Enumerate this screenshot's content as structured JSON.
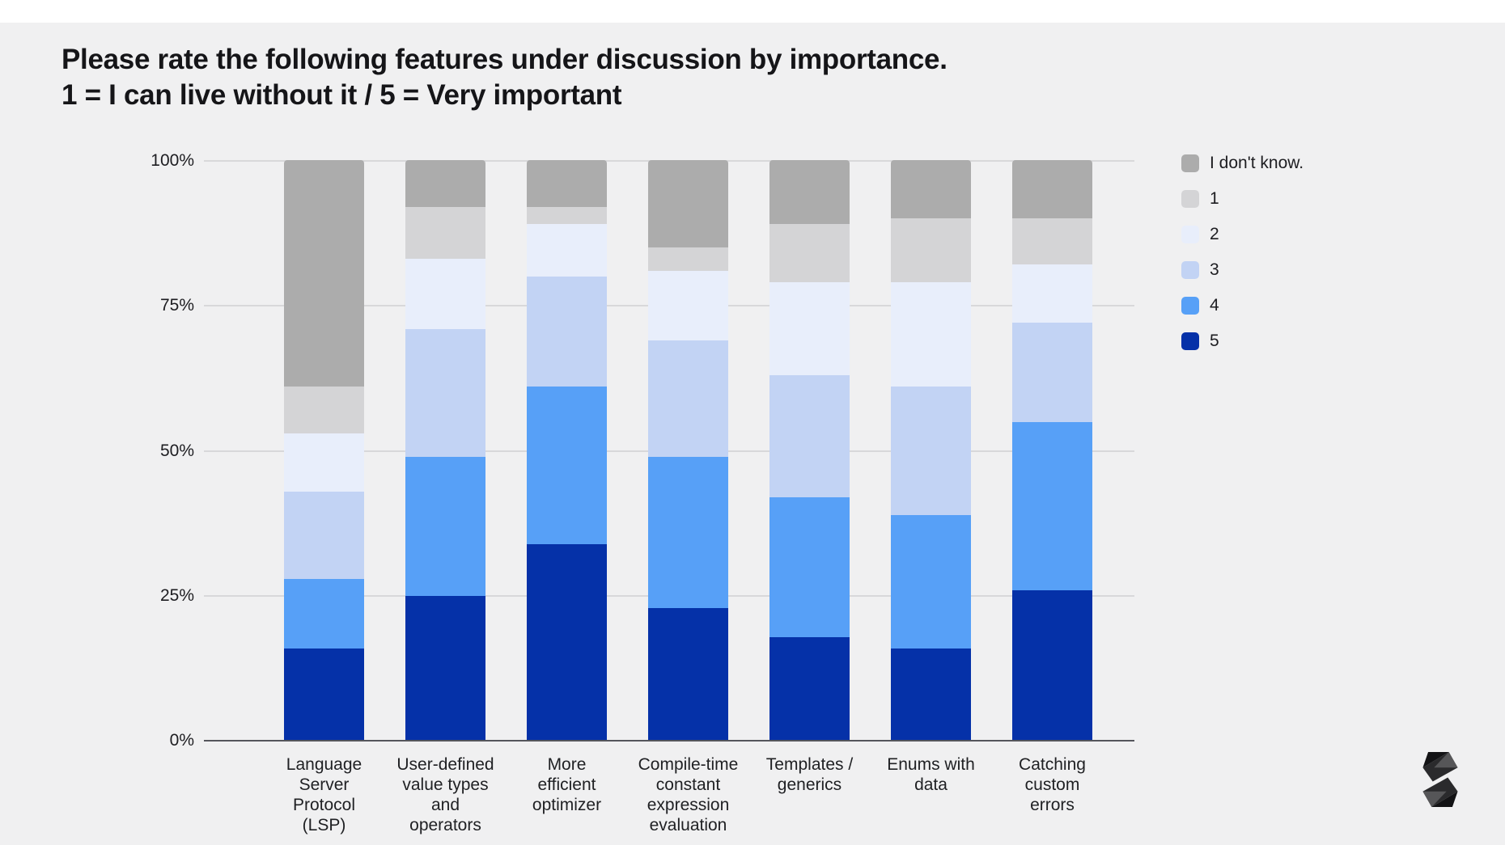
{
  "page": {
    "background_color": "#f0f0f1",
    "top_strip_color": "#ffffff"
  },
  "title": {
    "line1": "Please rate the following features under discussion by importance.",
    "line2": "1 = I can live without it / 5 = Very important"
  },
  "chart_data": {
    "type": "bar",
    "subtype": "stacked-percent-column",
    "title": "Please rate the following features under discussion by importance. 1 = I can live without it / 5 = Very important",
    "xlabel": "",
    "ylabel": "",
    "ylim": [
      0,
      100
    ],
    "grid": true,
    "legend_position": "right",
    "y_ticks": [
      "100%",
      "75%",
      "50%",
      "25%",
      "0%"
    ],
    "categories": [
      "Language Server Protocol (LSP)",
      "User-defined value types and operators",
      "More efficient optimizer",
      "Compile-time constant expression evaluation",
      "Templates / generics",
      "Enums with data",
      "Catching custom errors"
    ],
    "category_label_lines": [
      [
        "Language",
        "Server",
        "Protocol",
        "(LSP)"
      ],
      [
        "User-defined",
        "value types",
        "and",
        "operators"
      ],
      [
        "More",
        "efficient",
        "optimizer"
      ],
      [
        "Compile-time",
        "constant",
        "expression",
        "evaluation"
      ],
      [
        "Templates /",
        "generics"
      ],
      [
        "Enums with",
        "data"
      ],
      [
        "Catching",
        "custom",
        "errors"
      ]
    ],
    "series": [
      {
        "name": "I don't know.",
        "color": "#acacac",
        "values": [
          39,
          8,
          8,
          15,
          11,
          10,
          10
        ]
      },
      {
        "name": "1",
        "color": "#d4d4d6",
        "values": [
          8,
          9,
          3,
          4,
          10,
          11,
          8
        ]
      },
      {
        "name": "2",
        "color": "#e8eefb",
        "values": [
          10,
          12,
          9,
          12,
          16,
          18,
          10
        ]
      },
      {
        "name": "3",
        "color": "#c2d3f4",
        "values": [
          15,
          22,
          19,
          20,
          21,
          22,
          17
        ]
      },
      {
        "name": "4",
        "color": "#57a0f7",
        "values": [
          12,
          24,
          27,
          26,
          24,
          23,
          29
        ]
      },
      {
        "name": "5",
        "color": "#0531a8",
        "values": [
          16,
          25,
          34,
          23,
          18,
          16,
          26
        ]
      }
    ],
    "stack_order_bottom_to_top": [
      "5",
      "4",
      "3",
      "2",
      "1",
      "I don't know."
    ],
    "values_are_percent": true
  },
  "legend": {
    "items": [
      {
        "label": "I don't know.",
        "color": "#acacac"
      },
      {
        "label": "1",
        "color": "#d4d4d6"
      },
      {
        "label": "2",
        "color": "#e8eefb"
      },
      {
        "label": "3",
        "color": "#c2d3f4"
      },
      {
        "label": "4",
        "color": "#57a0f7"
      },
      {
        "label": "5",
        "color": "#0531a8"
      }
    ]
  },
  "layout_colors": {
    "gridline": "#d8d8da",
    "axis_line": "#55565c",
    "tick_text": "#1d1d21",
    "title_text": "#151518"
  },
  "footer": {
    "logo_name": "solidity-logo"
  }
}
